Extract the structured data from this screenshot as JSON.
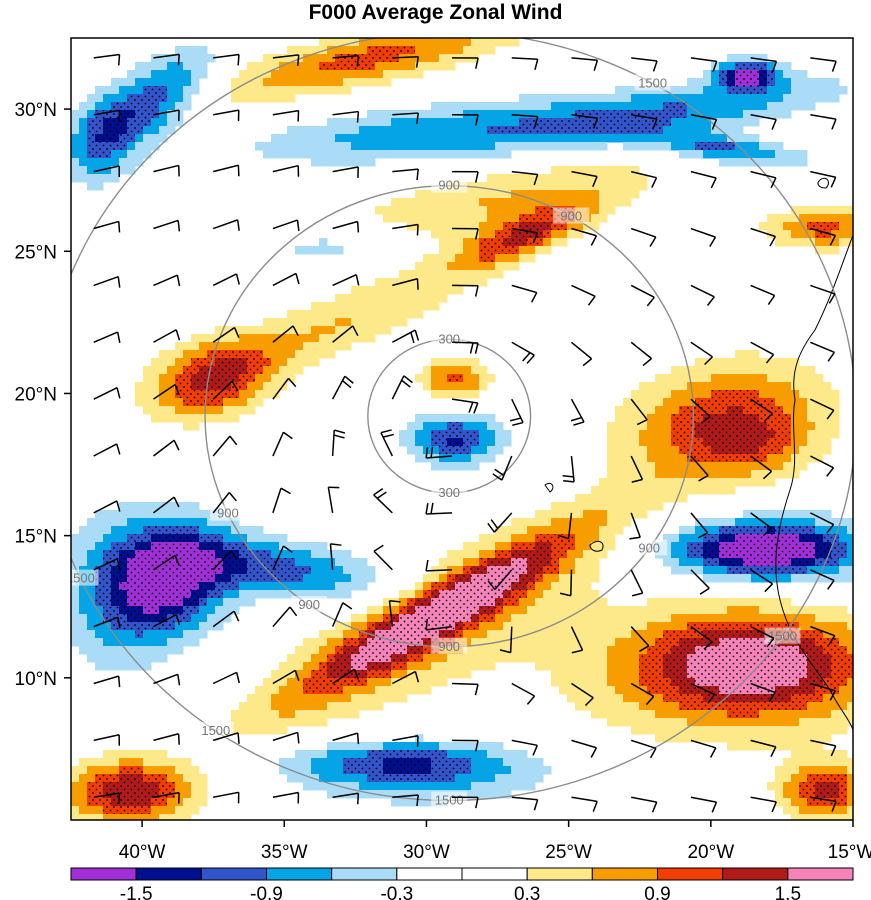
{
  "chart_data": {
    "type": "heatmap",
    "title": "F000 Average Zonal Wind",
    "xlabel": "",
    "ylabel": "",
    "x_ticks": [
      "40°W",
      "35°W",
      "30°W",
      "25°W",
      "20°W",
      "15°W"
    ],
    "y_ticks": [
      "30°N",
      "25°N",
      "20°N",
      "15°N",
      "10°N"
    ],
    "xlim": [
      -42.5,
      -15
    ],
    "ylim": [
      5,
      32.5
    ],
    "colorbar": {
      "boundaries": [
        -1.8,
        -1.5,
        -1.2,
        -0.9,
        -0.6,
        -0.3,
        0,
        0.3,
        0.6,
        0.9,
        1.2,
        1.5,
        1.8
      ],
      "labels": [
        "-1.5",
        "-0.9",
        "-0.3",
        "0.3",
        "0.9",
        "1.5"
      ],
      "label_values": [
        -1.5,
        -0.9,
        -0.3,
        0.3,
        0.9,
        1.5
      ],
      "colors": [
        "#a02fd8",
        "#000f8f",
        "#3355cc",
        "#05a4e6",
        "#aadcf8",
        "#ffffff",
        "#ffffff",
        "#fde98a",
        "#f79d00",
        "#f23d05",
        "#b21a1a",
        "#f684bb"
      ]
    },
    "range_ring_labels": [
      "300",
      "900",
      "1500"
    ],
    "range_rings": [
      300,
      900,
      1500
    ],
    "features": [
      {
        "kind": "neg",
        "lon": -39.8,
        "lat": 30.2,
        "amp": -1.2,
        "rx": 2.6,
        "ry": 1.1,
        "angle": 35
      },
      {
        "kind": "neg",
        "lon": -41.5,
        "lat": 28.8,
        "amp": -0.6,
        "rx": 1.2,
        "ry": 1.6,
        "angle": 0
      },
      {
        "kind": "pos",
        "lon": -32.0,
        "lat": 31.8,
        "amp": 1.0,
        "rx": 5.5,
        "ry": 0.9,
        "angle": 12
      },
      {
        "kind": "neg",
        "lon": -30.5,
        "lat": 29.2,
        "amp": -0.7,
        "rx": 6.0,
        "ry": 0.9,
        "angle": 6
      },
      {
        "kind": "neg",
        "lon": -22.0,
        "lat": 29.8,
        "amp": -0.9,
        "rx": 6.5,
        "ry": 0.9,
        "angle": 8
      },
      {
        "kind": "neg",
        "lon": -19.5,
        "lat": 28.6,
        "amp": -1.0,
        "rx": 2.8,
        "ry": 0.5,
        "angle": -8
      },
      {
        "kind": "neg",
        "lon": -18.7,
        "lat": 31.2,
        "amp": -1.6,
        "rx": 1.1,
        "ry": 0.5,
        "angle": 0
      },
      {
        "kind": "pos",
        "lon": -27.5,
        "lat": 26.8,
        "amp": 0.6,
        "rx": 6.0,
        "ry": 1.1,
        "angle": 10
      },
      {
        "kind": "pos",
        "lon": -26.5,
        "lat": 25.6,
        "amp": 1.1,
        "rx": 2.5,
        "ry": 0.7,
        "angle": 22
      },
      {
        "kind": "pos",
        "lon": -16.0,
        "lat": 25.8,
        "amp": 1.0,
        "rx": 2.0,
        "ry": 0.7,
        "angle": 0
      },
      {
        "kind": "neg",
        "lon": -33.5,
        "lat": 25.2,
        "amp": -0.5,
        "rx": 2.6,
        "ry": 0.7,
        "angle": 5
      },
      {
        "kind": "neg",
        "lon": -22.5,
        "lat": 23.4,
        "amp": -0.3,
        "rx": 2.0,
        "ry": 0.7,
        "angle": 0
      },
      {
        "kind": "pos",
        "lon": -37.5,
        "lat": 20.5,
        "amp": 1.15,
        "rx": 2.1,
        "ry": 1.3,
        "angle": 15
      },
      {
        "kind": "pos",
        "lon": -33.0,
        "lat": 22.5,
        "amp": 0.6,
        "rx": 6.0,
        "ry": 1.1,
        "angle": 22
      },
      {
        "kind": "pos",
        "lon": -29.0,
        "lat": 20.5,
        "amp": 1.0,
        "rx": 1.2,
        "ry": 0.8,
        "angle": 0
      },
      {
        "kind": "neg",
        "lon": -29.0,
        "lat": 18.4,
        "amp": -1.25,
        "rx": 1.6,
        "ry": 0.9,
        "angle": 0
      },
      {
        "kind": "pos",
        "lon": -19.5,
        "lat": 19.0,
        "amp": 1.15,
        "rx": 3.5,
        "ry": 2.0,
        "angle": 10
      },
      {
        "kind": "pos",
        "lon": -18.5,
        "lat": 18.2,
        "amp": 0.45,
        "rx": 1.8,
        "ry": 1.0,
        "angle": 0
      },
      {
        "kind": "neg",
        "lon": -39.0,
        "lat": 13.5,
        "amp": -1.7,
        "rx": 2.2,
        "ry": 1.8,
        "angle": 30
      },
      {
        "kind": "neg",
        "lon": -35.0,
        "lat": 13.8,
        "amp": -1.0,
        "rx": 3.8,
        "ry": 1.0,
        "angle": -8
      },
      {
        "kind": "neg",
        "lon": -41.0,
        "lat": 13.0,
        "amp": -0.6,
        "rx": 2.0,
        "ry": 3.0,
        "angle": 0
      },
      {
        "kind": "pos",
        "lon": -29.5,
        "lat": 12.3,
        "amp": 1.6,
        "rx": 5.5,
        "ry": 0.9,
        "angle": 30
      },
      {
        "kind": "pos",
        "lon": -29.5,
        "lat": 12.0,
        "amp": 0.6,
        "rx": 7.5,
        "ry": 2.2,
        "angle": 28
      },
      {
        "kind": "neg",
        "lon": -18.2,
        "lat": 14.5,
        "amp": -1.55,
        "rx": 3.0,
        "ry": 0.9,
        "angle": 0
      },
      {
        "kind": "neg",
        "lon": -17.5,
        "lat": 14.5,
        "amp": -0.5,
        "rx": 4.0,
        "ry": 1.5,
        "angle": 0
      },
      {
        "kind": "pos",
        "lon": -18.5,
        "lat": 10.5,
        "amp": 1.45,
        "rx": 4.0,
        "ry": 1.8,
        "angle": 0
      },
      {
        "kind": "pos",
        "lon": -20.0,
        "lat": 10.0,
        "amp": 0.5,
        "rx": 6.0,
        "ry": 2.5,
        "angle": 0
      },
      {
        "kind": "neg",
        "lon": -31.0,
        "lat": 7.0,
        "amp": -1.0,
        "rx": 4.0,
        "ry": 0.8,
        "angle": 0
      },
      {
        "kind": "neg",
        "lon": -30.0,
        "lat": 6.4,
        "amp": -0.4,
        "rx": 5.0,
        "ry": 1.2,
        "angle": 0
      },
      {
        "kind": "pos",
        "lon": -40.5,
        "lat": 6.0,
        "amp": 1.45,
        "rx": 2.2,
        "ry": 1.1,
        "angle": 0
      },
      {
        "kind": "pos",
        "lon": -16.0,
        "lat": 6.0,
        "amp": 1.3,
        "rx": 1.5,
        "ry": 1.0,
        "angle": 0
      }
    ]
  }
}
